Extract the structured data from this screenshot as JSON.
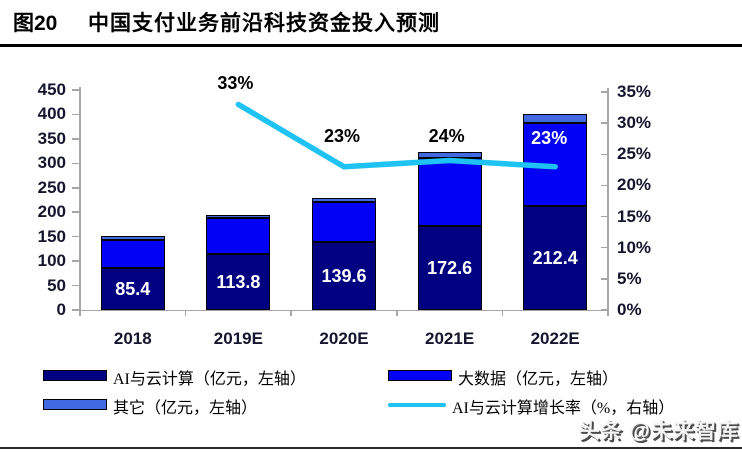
{
  "header": {
    "figure_label": "图20",
    "title": "中国支付业务前沿科技资金投入预测"
  },
  "chart_data": {
    "type": "bar",
    "subtype": "stacked-bars-with-line",
    "categories": [
      "2018",
      "2019E",
      "2020E",
      "2021E",
      "2022E"
    ],
    "series": [
      {
        "name": "AI与云计算（亿元，左轴）",
        "type": "bar",
        "axis": "left",
        "color": "#000080",
        "values": [
          85.4,
          113.8,
          139.6,
          172.6,
          212.4
        ],
        "labels": [
          "85.4",
          "113.8",
          "139.6",
          "172.6",
          "212.4"
        ],
        "label_color": "#ffffff"
      },
      {
        "name": "大数据（亿元，左轴）",
        "type": "bar",
        "axis": "left",
        "color": "#0101f5",
        "values": [
          58.6,
          74.2,
          81.4,
          138.0,
          170.6
        ]
      },
      {
        "name": "其它（亿元，左轴）",
        "type": "bar",
        "axis": "left",
        "color": "#4169e1",
        "values": [
          7,
          7,
          9,
          13,
          17
        ]
      },
      {
        "name": "AI与云计算增长率（%，右轴）",
        "type": "line",
        "axis": "right",
        "color": "#1fc3f3",
        "values": [
          null,
          33,
          23,
          24,
          23
        ],
        "labels": [
          null,
          "33%",
          "23%",
          "24%",
          "23%"
        ],
        "label_colors": [
          null,
          "#000000",
          "#000000",
          "#000000",
          "#ffffff"
        ]
      }
    ],
    "left_axis": {
      "min": 0,
      "max": 450,
      "step": 50,
      "ticks": [
        "450",
        "400",
        "350",
        "300",
        "250",
        "200",
        "150",
        "100",
        "50",
        "0"
      ]
    },
    "right_axis": {
      "min": 0,
      "max": 35,
      "step": 5,
      "ticks": [
        "35%",
        "30%",
        "25%",
        "20%",
        "15%",
        "10%",
        "5%",
        "0%"
      ]
    },
    "grid": false,
    "legend_position": "bottom"
  },
  "legend": {
    "items": [
      {
        "label": "AI与云计算（亿元，左轴）",
        "swatch": "#000080",
        "kind": "box"
      },
      {
        "label": "大数据（亿元，左轴）",
        "swatch": "#0101f5",
        "kind": "box"
      },
      {
        "label": "其它（亿元，左轴）",
        "swatch": "#4169e1",
        "kind": "box"
      },
      {
        "label": "AI与云计算增长率（%，右轴）",
        "swatch": "#1fc3f3",
        "kind": "line"
      }
    ]
  },
  "watermark": "头条 @未来智库",
  "colors": {
    "axis": "#a6a6a6",
    "tick_text": "#15152e",
    "title_text": "#000000",
    "rule": "#000000"
  }
}
